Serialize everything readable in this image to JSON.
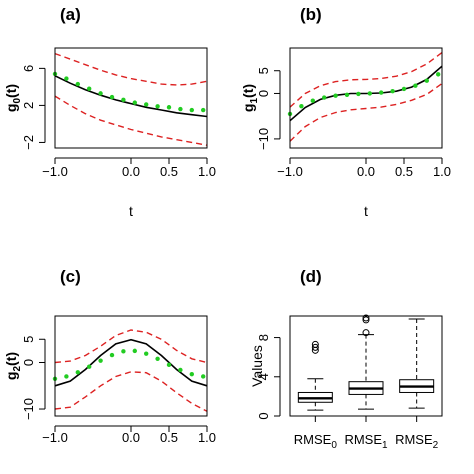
{
  "chart_data": [
    {
      "id": "a",
      "type": "line",
      "panel_label": "(a)",
      "xlabel": "t",
      "ylabel_main": "g",
      "ylabel_sub": "0",
      "ylabel_tail": "(t)",
      "xlim": [
        -1.0,
        1.0
      ],
      "ylim": [
        -2.6,
        8.2
      ],
      "xticks": [
        -1.0,
        0.0,
        0.5,
        1.0
      ],
      "xtick_labels": [
        "−1.0",
        "0.0",
        "0.5",
        "1.0"
      ],
      "yticks": [
        -2,
        2,
        6
      ],
      "ytick_labels": [
        "−2",
        "2",
        "6"
      ],
      "series": [
        {
          "style": "solid",
          "color": "#000000",
          "x": [
            -1.0,
            -0.8,
            -0.6,
            -0.4,
            -0.2,
            0.0,
            0.2,
            0.4,
            0.6,
            0.8,
            1.0
          ],
          "y": [
            5.2,
            4.4,
            3.7,
            3.1,
            2.6,
            2.2,
            1.8,
            1.5,
            1.2,
            1.0,
            0.8
          ]
        },
        {
          "style": "dashed",
          "color": "#dd2222",
          "x": [
            -1.0,
            -0.8,
            -0.6,
            -0.4,
            -0.2,
            0.0,
            0.2,
            0.4,
            0.6,
            0.8,
            1.0
          ],
          "y": [
            7.6,
            7.0,
            6.4,
            5.8,
            5.3,
            4.9,
            4.6,
            4.3,
            4.2,
            4.3,
            4.6
          ]
        },
        {
          "style": "dashed",
          "color": "#dd2222",
          "x": [
            -1.0,
            -0.8,
            -0.6,
            -0.4,
            -0.2,
            0.0,
            0.2,
            0.4,
            0.6,
            0.8,
            1.0
          ],
          "y": [
            3.0,
            2.0,
            1.1,
            0.4,
            -0.1,
            -0.6,
            -1.0,
            -1.4,
            -1.7,
            -2.0,
            -2.3
          ]
        },
        {
          "style": "dots",
          "color": "#22cc22",
          "x": [
            -1.0,
            -0.85,
            -0.7,
            -0.55,
            -0.4,
            -0.25,
            -0.1,
            0.05,
            0.2,
            0.35,
            0.5,
            0.65,
            0.8,
            0.95
          ],
          "y": [
            5.4,
            4.9,
            4.3,
            3.8,
            3.3,
            2.9,
            2.6,
            2.3,
            2.1,
            1.9,
            1.8,
            1.6,
            1.5,
            1.5
          ]
        }
      ]
    },
    {
      "id": "b",
      "type": "line",
      "panel_label": "(b)",
      "xlabel": "t",
      "ylabel_main": "g",
      "ylabel_sub": "1",
      "ylabel_tail": "(t)",
      "xlim": [
        -1.0,
        1.0
      ],
      "ylim": [
        -12,
        10
      ],
      "xticks": [
        -1.0,
        0.0,
        0.5,
        1.0
      ],
      "xtick_labels": [
        "−1.0",
        "0.0",
        "0.5",
        "1.0"
      ],
      "yticks": [
        -10,
        0,
        5
      ],
      "ytick_labels": [
        "−10",
        "0",
        "5"
      ],
      "series": [
        {
          "style": "solid",
          "color": "#000000",
          "x": [
            -1.0,
            -0.8,
            -0.6,
            -0.4,
            -0.2,
            0.0,
            0.2,
            0.4,
            0.6,
            0.8,
            1.0
          ],
          "y": [
            -6.0,
            -3.1,
            -1.3,
            -0.4,
            0.0,
            0.0,
            0.1,
            0.5,
            1.4,
            3.1,
            6.0
          ]
        },
        {
          "style": "dashed",
          "color": "#dd2222",
          "x": [
            -1.0,
            -0.8,
            -0.6,
            -0.4,
            -0.2,
            0.0,
            0.2,
            0.4,
            0.6,
            0.8,
            1.0
          ],
          "y": [
            -3.0,
            0.0,
            1.7,
            2.6,
            3.0,
            3.1,
            3.3,
            3.8,
            4.8,
            6.5,
            9.0
          ]
        },
        {
          "style": "dashed",
          "color": "#dd2222",
          "x": [
            -1.0,
            -0.8,
            -0.6,
            -0.4,
            -0.2,
            0.0,
            0.2,
            0.4,
            0.6,
            0.8,
            1.0
          ],
          "y": [
            -10.5,
            -7.3,
            -5.3,
            -4.2,
            -3.6,
            -3.3,
            -3.0,
            -2.4,
            -1.5,
            -0.2,
            2.2
          ]
        },
        {
          "style": "dots",
          "color": "#22cc22",
          "x": [
            -1.0,
            -0.85,
            -0.7,
            -0.55,
            -0.4,
            -0.25,
            -0.1,
            0.05,
            0.2,
            0.35,
            0.5,
            0.65,
            0.8,
            0.95
          ],
          "y": [
            -4.5,
            -2.8,
            -1.6,
            -0.9,
            -0.5,
            -0.3,
            -0.1,
            0.0,
            0.2,
            0.5,
            1.0,
            1.7,
            2.8,
            4.2
          ]
        }
      ]
    },
    {
      "id": "c",
      "type": "line",
      "panel_label": "(c)",
      "xlabel": "",
      "ylabel_main": "g",
      "ylabel_sub": "2",
      "ylabel_tail": "(t)",
      "xlim": [
        -1.0,
        1.0
      ],
      "ylim": [
        -11.5,
        10
      ],
      "xticks": [
        -1.0,
        0.0,
        0.5,
        1.0
      ],
      "xtick_labels": [
        "−1.0",
        "0.0",
        "0.5",
        "1.0"
      ],
      "yticks": [
        -10,
        0,
        5
      ],
      "ytick_labels": [
        "−10",
        "0",
        "5"
      ],
      "series": [
        {
          "style": "solid",
          "color": "#000000",
          "x": [
            -1.0,
            -0.8,
            -0.6,
            -0.4,
            -0.2,
            0.0,
            0.2,
            0.4,
            0.6,
            0.8,
            1.0
          ],
          "y": [
            -5.0,
            -4.0,
            -1.5,
            1.5,
            4.0,
            4.9,
            4.0,
            1.5,
            -1.5,
            -4.0,
            -5.0
          ]
        },
        {
          "style": "dashed",
          "color": "#dd2222",
          "x": [
            -1.0,
            -0.8,
            -0.6,
            -0.4,
            -0.2,
            0.0,
            0.2,
            0.4,
            0.6,
            0.8,
            1.0
          ],
          "y": [
            0.0,
            0.3,
            1.5,
            3.5,
            5.8,
            7.0,
            6.5,
            5.0,
            2.6,
            0.8,
            0.0
          ]
        },
        {
          "style": "dashed",
          "color": "#dd2222",
          "x": [
            -1.0,
            -0.8,
            -0.6,
            -0.4,
            -0.2,
            0.0,
            0.2,
            0.4,
            0.6,
            0.8,
            1.0
          ],
          "y": [
            -10.0,
            -9.6,
            -7.4,
            -5.0,
            -3.0,
            -2.0,
            -2.2,
            -4.0,
            -6.5,
            -8.8,
            -10.5
          ]
        },
        {
          "style": "dots",
          "color": "#22cc22",
          "x": [
            -1.0,
            -0.85,
            -0.7,
            -0.55,
            -0.4,
            -0.25,
            -0.1,
            0.05,
            0.2,
            0.35,
            0.5,
            0.65,
            0.8,
            0.95
          ],
          "y": [
            -3.5,
            -3.0,
            -2.1,
            -0.9,
            0.4,
            1.6,
            2.4,
            2.5,
            1.9,
            0.8,
            -0.5,
            -1.6,
            -2.5,
            -3.0
          ]
        }
      ]
    },
    {
      "id": "d",
      "type": "boxplot",
      "panel_label": "(d)",
      "ylabel": "Values",
      "ylim": [
        0,
        10.2
      ],
      "yticks": [
        0,
        4,
        8
      ],
      "ytick_labels": [
        "0",
        "4",
        "8"
      ],
      "categories": [
        {
          "main": "RMSE",
          "sub": "0"
        },
        {
          "main": "RMSE",
          "sub": "1"
        },
        {
          "main": "RMSE",
          "sub": "2"
        }
      ],
      "boxes": [
        {
          "whisker_low": 0.6,
          "q1": 1.4,
          "median": 1.8,
          "q3": 2.4,
          "whisker_high": 3.8,
          "outliers": [
            6.7,
            7.0,
            7.3
          ]
        },
        {
          "whisker_low": 0.7,
          "q1": 2.2,
          "median": 2.8,
          "q3": 3.5,
          "whisker_high": 8.3,
          "outliers": [
            8.5,
            9.8,
            10.0
          ]
        },
        {
          "whisker_low": 0.8,
          "q1": 2.4,
          "median": 3.0,
          "q3": 3.7,
          "whisker_high": 9.9,
          "outliers": []
        }
      ]
    }
  ]
}
